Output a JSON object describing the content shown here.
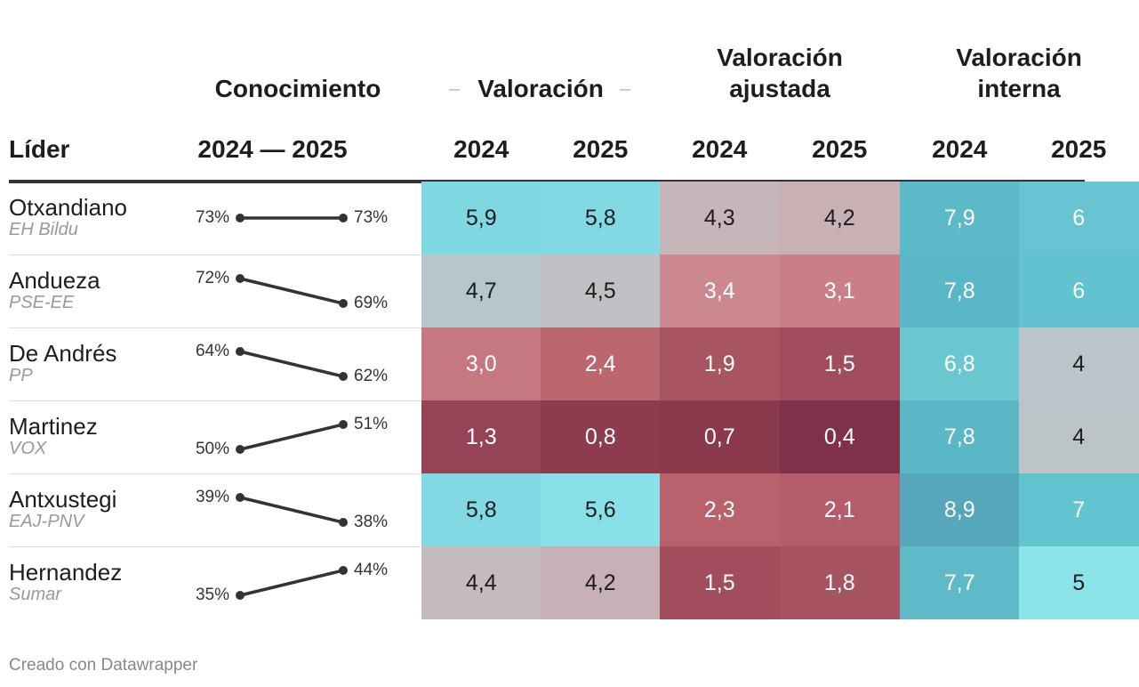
{
  "header": {
    "groups": [
      "Conocimiento",
      "Valoración",
      "Valoración ajustada",
      "Valoración interna"
    ],
    "columns": [
      "Líder",
      "2024 — 2025",
      "2024",
      "2025",
      "2024",
      "2025",
      "2024",
      "2025"
    ]
  },
  "rows": [
    {
      "leader": "Otxandiano",
      "party": "EH Bildu",
      "knowledge": [
        73,
        73
      ],
      "knowledge_labels": [
        "73%",
        "73%"
      ],
      "cells": [
        "5,9",
        "5,8",
        "4,3",
        "4,2",
        "7,9",
        "6"
      ],
      "cell_colors": [
        "#7fd8e1",
        "#83d9e3",
        "#c6b5b9",
        "#c8b0b4",
        "#5cb9c8",
        "#68c4d0"
      ]
    },
    {
      "leader": "Andueza",
      "party": "PSE-EE",
      "knowledge": [
        72,
        69
      ],
      "knowledge_labels": [
        "72%",
        "69%"
      ],
      "cells": [
        "4,7",
        "4,5",
        "3,4",
        "3,1",
        "7,8",
        "6"
      ],
      "cell_colors": [
        "#b5c6cc",
        "#c0c0c5",
        "#cc8890",
        "#c97e88",
        "#5ab8c6",
        "#62c2cf"
      ]
    },
    {
      "leader": "De Andrés",
      "party": "PP",
      "knowledge": [
        64,
        62
      ],
      "knowledge_labels": [
        "64%",
        "62%"
      ],
      "cells": [
        "3,0",
        "2,4",
        "1,9",
        "1,5",
        "6,8",
        "4"
      ],
      "cell_colors": [
        "#c67881",
        "#bc6670",
        "#a85563",
        "#a04e5e",
        "#6ac7d2",
        "#b9c5c9"
      ]
    },
    {
      "leader": "Martinez",
      "party": "VOX",
      "knowledge": [
        50,
        51
      ],
      "knowledge_labels": [
        "50%",
        "51%"
      ],
      "cells": [
        "1,3",
        "0,8",
        "0,7",
        "0,4",
        "7,8",
        "4"
      ],
      "cell_colors": [
        "#954457",
        "#8d3b4f",
        "#8b3a4e",
        "#7f3149",
        "#5ab8c6",
        "#bcc4c8"
      ]
    },
    {
      "leader": "Antxustegi",
      "party": "EAJ-PNV",
      "knowledge": [
        39,
        38
      ],
      "knowledge_labels": [
        "39%",
        "38%"
      ],
      "cells": [
        "5,8",
        "5,6",
        "2,3",
        "2,1",
        "8,9",
        "7"
      ],
      "cell_colors": [
        "#83d9e3",
        "#8ae0e8",
        "#b9616d",
        "#b45c69",
        "#55a7b9",
        "#63c3cf"
      ]
    },
    {
      "leader": "Hernandez",
      "party": "Sumar",
      "knowledge": [
        35,
        44
      ],
      "knowledge_labels": [
        "35%",
        "44%"
      ],
      "cells": [
        "4,4",
        "4,2",
        "1,5",
        "1,8",
        "7,7",
        "5"
      ],
      "cell_colors": [
        "#c4bac0",
        "#c8b1b6",
        "#a04e5e",
        "#a65462",
        "#5fbac8",
        "#8de3ea"
      ]
    }
  ],
  "footer": "Creado con Datawrapper"
}
